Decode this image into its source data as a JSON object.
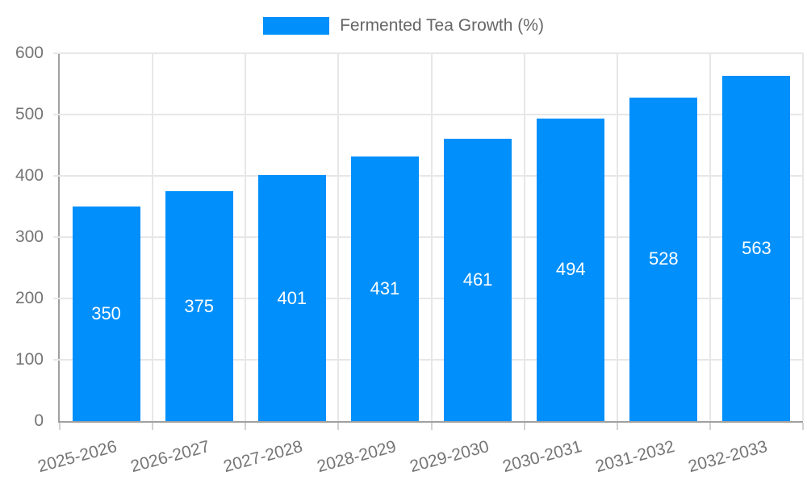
{
  "legend": {
    "label": "Fermented Tea Growth (%)"
  },
  "chart_data": {
    "type": "bar",
    "title": "",
    "categories": [
      "2025-2026",
      "2026-2027",
      "2027-2028",
      "2028-2029",
      "2029-2030",
      "2030-2031",
      "2031-2032",
      "2032-2033"
    ],
    "series": [
      {
        "name": "Fermented Tea Growth (%)",
        "values": [
          350,
          375,
          401,
          431,
          461,
          494,
          528,
          563
        ]
      }
    ],
    "xlabel": "",
    "ylabel": "",
    "ylim": [
      0,
      600
    ],
    "yticks": [
      0,
      100,
      200,
      300,
      400,
      500,
      600
    ],
    "grid": true,
    "legend_position": "top-center",
    "data_labels_position": "inside-center",
    "colors": {
      "bar": "#008FFB",
      "data_label": "#ffffff",
      "axis_text": "#757575",
      "legend_text": "#666666",
      "gridline": "#e7e7e7",
      "axis_line": "#a0a0a0",
      "tick": "#d2d2d2",
      "background": "#ffffff"
    }
  }
}
